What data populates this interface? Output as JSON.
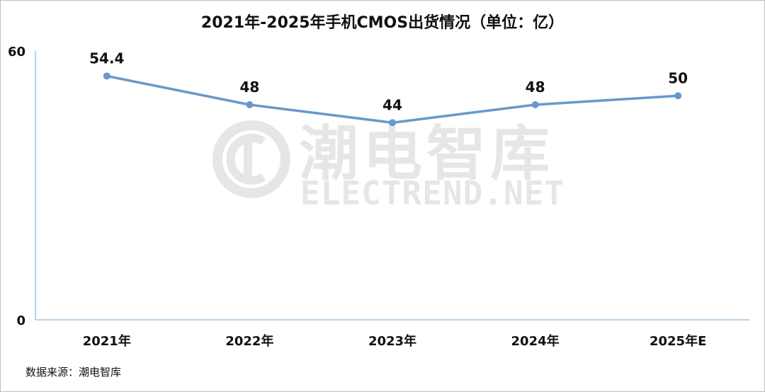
{
  "chart_data": {
    "type": "line",
    "title": "2021年-2025年手机CMOS出货情况（单位：亿）",
    "categories": [
      "2021年",
      "2022年",
      "2023年",
      "2024年",
      "2025年E"
    ],
    "series": [
      {
        "values": [
          54.4,
          48,
          44,
          48,
          50
        ],
        "color": "#6699cc"
      }
    ],
    "data_labels": [
      "54.4",
      "48",
      "44",
      "48",
      "50"
    ],
    "yticks": [
      "0",
      "60"
    ],
    "ylim": [
      0,
      60
    ],
    "xlabel": "",
    "ylabel": "",
    "grid": false,
    "legend": "none",
    "axis_color": "#9dc3e6"
  },
  "source_text": "数据来源：潮电智库",
  "watermark": {
    "cn": "潮电智库",
    "en": "ELECTREND.NET",
    "icon": "electrend-logo-icon"
  }
}
